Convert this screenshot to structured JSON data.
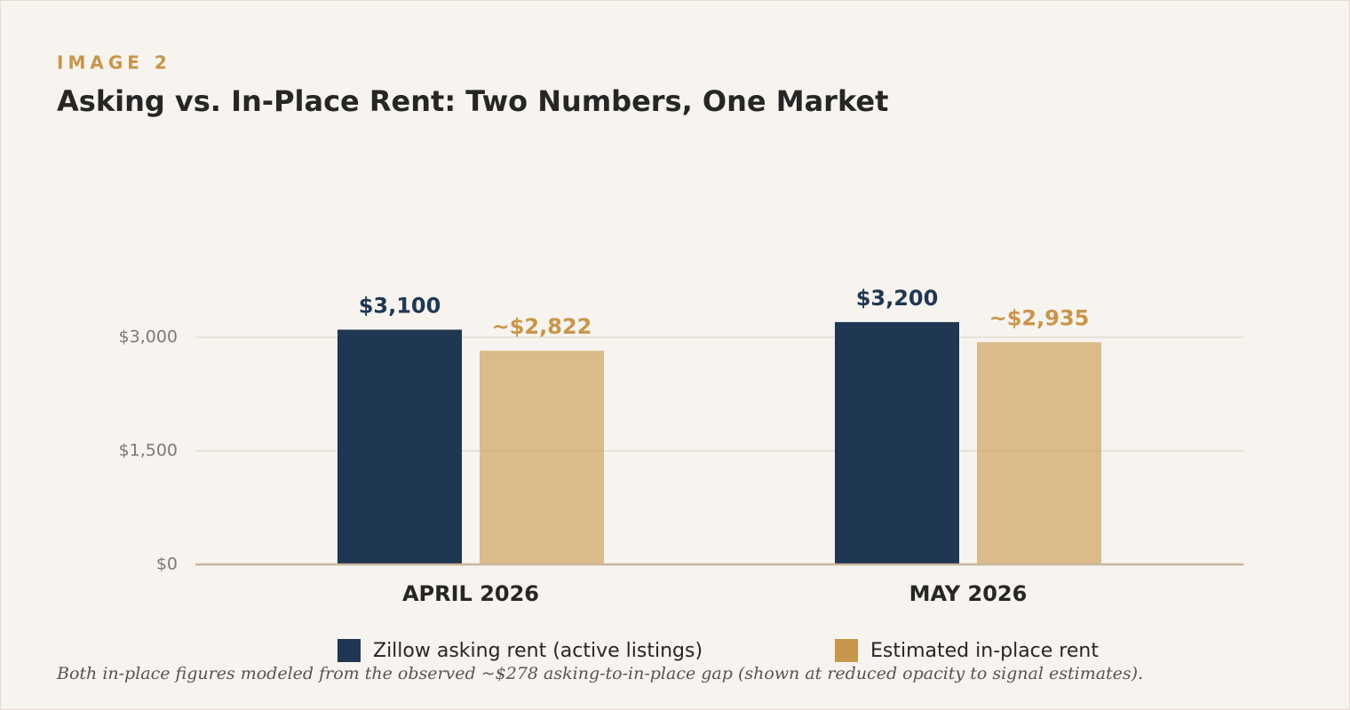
{
  "kicker": "IMAGE 2",
  "chart_data": {
    "type": "bar",
    "title": "Asking vs. In-Place Rent: Two Numbers, One Market",
    "categories": [
      "APRIL 2026",
      "MAY 2026"
    ],
    "series": [
      {
        "name": "Zillow asking rent (active listings)",
        "color": "#1f3752",
        "opacity": 1,
        "values": [
          3100,
          3200
        ],
        "value_labels": [
          "$3,100",
          "$3,200"
        ]
      },
      {
        "name": "Estimated in-place rent",
        "color": "#c8964a",
        "opacity": 0.6,
        "values": [
          2822,
          2935
        ],
        "value_labels": [
          "~$2,822",
          "~$2,935"
        ]
      }
    ],
    "ylim": [
      0,
      3500
    ],
    "yticks": [
      {
        "value": 0,
        "label": "$0"
      },
      {
        "value": 1500,
        "label": "$1,500"
      },
      {
        "value": 3000,
        "label": "$3,000"
      }
    ],
    "grid": true,
    "legend": "bottom",
    "note": "Both in-place figures modeled from the observed ~$278 asking-to-in-place gap (shown at reduced opacity to signal estimates)."
  }
}
